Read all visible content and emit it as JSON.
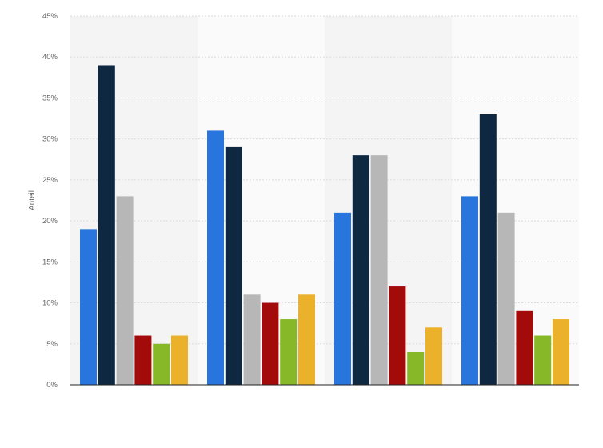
{
  "chart_data": {
    "type": "bar",
    "categories": [
      "",
      "",
      "",
      ""
    ],
    "series": [
      {
        "name": "",
        "color": "#2876dd",
        "values": [
          19,
          31,
          21,
          23
        ]
      },
      {
        "name": "",
        "color": "#0f2842",
        "values": [
          39,
          29,
          28,
          33
        ]
      },
      {
        "name": "",
        "color": "#b7b7b7",
        "values": [
          23,
          11,
          28,
          21
        ]
      },
      {
        "name": "",
        "color": "#a30a0a",
        "values": [
          6,
          10,
          12,
          9
        ]
      },
      {
        "name": "",
        "color": "#86b828",
        "values": [
          5,
          8,
          4,
          6
        ]
      },
      {
        "name": "",
        "color": "#ecb12a",
        "values": [
          6,
          11,
          7,
          8
        ]
      }
    ],
    "ylabel": "Anteil",
    "ylim": [
      0,
      45
    ],
    "yticks": [
      "0%",
      "5%",
      "10%",
      "15%",
      "20%",
      "25%",
      "30%",
      "35%",
      "40%",
      "45%"
    ],
    "grid": true,
    "legend": "none"
  }
}
